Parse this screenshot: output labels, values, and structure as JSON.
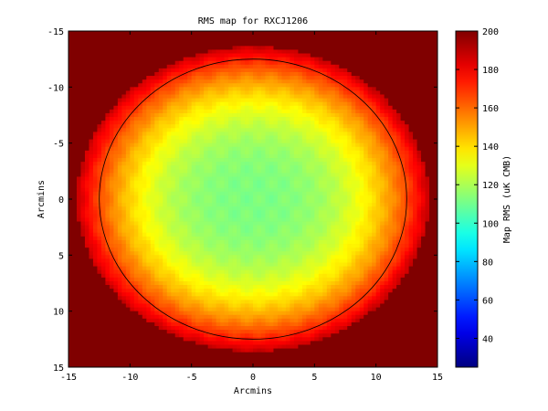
{
  "chart_data": {
    "type": "heatmap",
    "title": "RMS map for RXCJ1206",
    "xlabel": "Arcmins",
    "ylabel": "Arcmins",
    "xlim": [
      -15,
      15
    ],
    "ylim": [
      -15,
      15
    ],
    "y_axis_direction": "increasing-downward",
    "x_ticks": [
      -15,
      -10,
      -5,
      0,
      5,
      10,
      15
    ],
    "y_ticks": [
      -15,
      -10,
      -5,
      0,
      5,
      10,
      15
    ],
    "grid": false,
    "colorbar": {
      "label": "Map RMS (uK CMB)",
      "colormap": "jet",
      "range": [
        25,
        200
      ],
      "ticks": [
        40,
        60,
        80,
        100,
        120,
        140,
        160,
        180,
        200
      ],
      "position": "right"
    },
    "circle": {
      "center_x": 0,
      "center_y": 0,
      "radius": 12.5,
      "color": "#000000"
    },
    "field": {
      "saturated_value": 200,
      "coverage_semi_axis_x": 14.3,
      "coverage_semi_axis_y": 13.6,
      "center_value": 112,
      "edge_value": 188
    }
  },
  "colors": {
    "background": "#ffffff",
    "saturated": "#800000",
    "axis": "#000000"
  }
}
